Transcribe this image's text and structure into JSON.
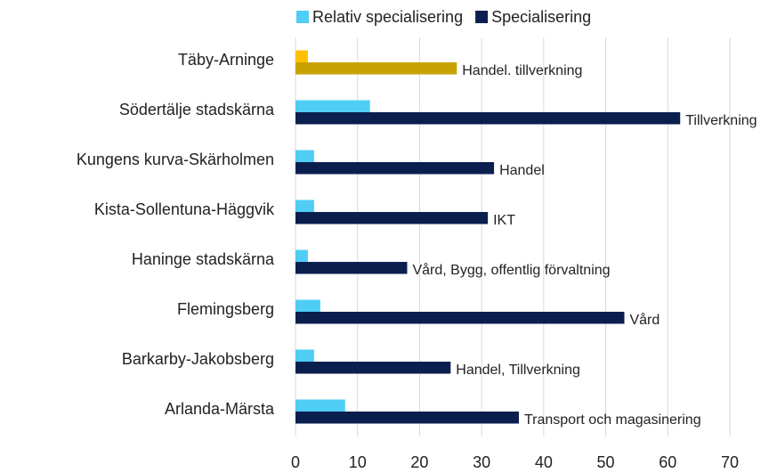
{
  "chart_data": {
    "type": "hbar",
    "categories": [
      "Täby-Arninge",
      "Södertälje stadskärna",
      "Kungens kurva-Skärholmen",
      "Kista-Sollentuna-Häggvik",
      "Haninge stadskärna",
      "Flemingsberg",
      "Barkarby-Jakobsberg",
      "Arlanda-Märsta"
    ],
    "series": [
      {
        "name": "Relativ specialisering",
        "color": "#4fcdf5",
        "colors": [
          "#ffc000",
          "#4fcdf5",
          "#4fcdf5",
          "#4fcdf5",
          "#4fcdf5",
          "#4fcdf5",
          "#4fcdf5",
          "#4fcdf5"
        ],
        "values": [
          2,
          12,
          3,
          3,
          2,
          4,
          3,
          8
        ]
      },
      {
        "name": "Specialisering",
        "color": "#0b1f4f",
        "colors": [
          "#c8a200",
          "#0b1f4f",
          "#0b1f4f",
          "#0b1f4f",
          "#0b1f4f",
          "#0b1f4f",
          "#0b1f4f",
          "#0b1f4f"
        ],
        "values": [
          26,
          62,
          32,
          31,
          18,
          53,
          25,
          36
        ]
      }
    ],
    "annotations": [
      "Handel. tillverkning",
      "Tillverkning",
      "Handel",
      "IKT",
      "Vård, Bygg, offentlig förvaltning",
      "Vård",
      "Handel, Tillverkning",
      "Transport och magasinering"
    ],
    "xlim": [
      0,
      70
    ],
    "xticks": [
      0,
      10,
      20,
      30,
      40,
      50,
      60,
      70
    ],
    "grid": true,
    "legend": "top"
  }
}
